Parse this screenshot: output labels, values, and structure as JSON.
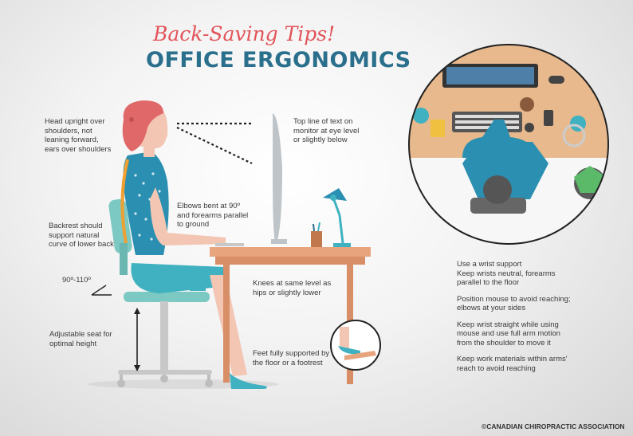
{
  "header": {
    "subtitle": "Back-Saving Tips!",
    "title": "OFFICE ERGONOMICS"
  },
  "notes": {
    "head": [
      "Head upright over",
      "shoulders, not",
      "leaning forward,",
      "ears over shoulders"
    ],
    "monitor": [
      "Top line of text on",
      "monitor at eye level",
      "or slightly below"
    ],
    "elbows": [
      "Elbows bent at 90º",
      "and forearms parallel",
      "to ground"
    ],
    "backrest": [
      "Backrest should",
      "support natural",
      "curve of lower back"
    ],
    "angle": "90º-110º",
    "knees": [
      "Knees at same level as",
      "hips or slightly lower"
    ],
    "seat": [
      "Adjustable seat for",
      "optimal height"
    ],
    "feet": [
      "Feet fully supported by",
      "the floor or a footrest"
    ]
  },
  "tips": [
    [
      "Use a wrist support",
      "Keep wrists neutral, forearms",
      "parallel to the floor"
    ],
    [
      "Position mouse to avoid reaching;",
      "elbows at your sides"
    ],
    [
      "Keep wrist straight while using",
      "mouse and use full arm motion",
      "from the shoulder to move it"
    ],
    [
      "Keep work materials within arms'",
      "reach to avoid reaching"
    ]
  ],
  "copyright": "©CANADIAN CHIROPRACTIC ASSOCIATION",
  "colors": {
    "title_script": "#e2545a",
    "title_main": "#2a6f8c",
    "teal": "#3fb1c0",
    "desk": "#e8a47c",
    "hair": "#e06868",
    "skin": "#f2c6b3"
  }
}
